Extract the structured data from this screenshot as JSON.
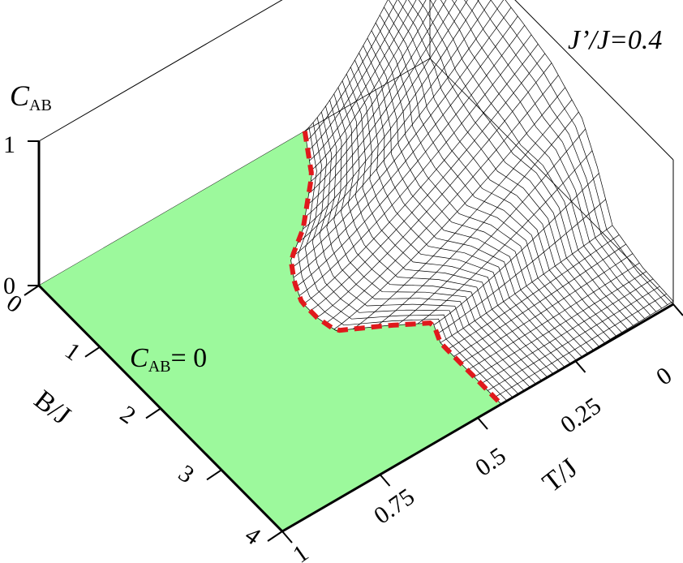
{
  "chart_data": {
    "type": "surface3d",
    "annotation": "J’/J=0.4",
    "z_axis": {
      "symbol": "C",
      "subscript": "AB",
      "ticks": [
        "0",
        "1"
      ],
      "range": [
        0,
        1
      ]
    },
    "b_axis": {
      "label": "B/J",
      "ticks": [
        "0",
        "1",
        "2",
        "3",
        "4"
      ],
      "range": [
        0,
        4
      ]
    },
    "t_axis": {
      "label": "T/J",
      "ticks": [
        "0",
        "0.25",
        "0.5",
        "0.75",
        "1"
      ],
      "range": [
        0,
        1
      ]
    },
    "zero_region_label": {
      "symbol": "C",
      "subscript": "AB",
      "text": "= 0"
    },
    "zero_region_color": "#9cf99c",
    "boundary_color": "#e0191c",
    "mesh_color": "#000000",
    "grid": true,
    "zero_boundary": {
      "description": "T/J (threshold temperature) as a function of B/J where C_AB vanishes",
      "B": [
        0,
        0.5,
        1.0,
        1.25,
        1.5,
        1.75,
        2.0,
        2.25,
        2.5,
        2.75,
        3.0
      ],
      "T": [
        0.32,
        0.38,
        0.48,
        0.55,
        0.58,
        0.6,
        0.6,
        0.59,
        0.5,
        0.42,
        0.44
      ]
    },
    "surface_samples": {
      "description": "approximate C_AB(T=0, B) along the low-temperature edge",
      "B": [
        0,
        0.5,
        1.0,
        1.5,
        2.0,
        2.5,
        2.75,
        3.0,
        3.5,
        4.0
      ],
      "C": [
        1.0,
        0.99,
        0.96,
        0.9,
        0.82,
        0.65,
        0.42,
        0.12,
        0.04,
        0.02
      ]
    }
  }
}
